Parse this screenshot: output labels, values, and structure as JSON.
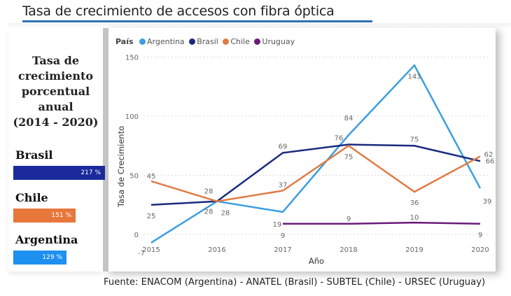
{
  "header": {
    "title": "Tasa de crecimiento de accesos con fibra óptica"
  },
  "summary_panel": {
    "heading_lines": [
      "Tasa de",
      "crecimiento",
      "porcentual",
      "anual",
      "(2014 - 2020)"
    ],
    "items": [
      {
        "country": "Brasil",
        "value_label": "217 %",
        "value": 217,
        "color": "#1a2a9c"
      },
      {
        "country": "Chile",
        "value_label": "151 %",
        "value": 151,
        "color": "#e8773c"
      },
      {
        "country": "Argentina",
        "value_label": "129 %",
        "value": 129,
        "color": "#1e90f0"
      }
    ]
  },
  "chart_data": {
    "type": "line",
    "title": "",
    "legend_title": "País",
    "legend_position": "top-left",
    "xlabel": "Año",
    "ylabel": "Tasa de Crecimiento",
    "x": [
      "2015",
      "2016",
      "2017",
      "2018",
      "2019",
      "2020"
    ],
    "ylim": [
      -10,
      150
    ],
    "yticks": [
      0,
      50,
      100,
      150
    ],
    "grid": true,
    "series": [
      {
        "name": "Argentina",
        "color": "#3a9ee0",
        "values": [
          -7,
          28,
          19,
          84,
          143,
          39
        ]
      },
      {
        "name": "Brasil",
        "color": "#1b2a7e",
        "values": [
          25,
          28,
          69,
          76,
          75,
          62
        ]
      },
      {
        "name": "Chile",
        "color": "#e07a45",
        "values": [
          45,
          28,
          37,
          75,
          36,
          66
        ]
      },
      {
        "name": "Uruguay",
        "color": "#6a1b7a",
        "values": [
          null,
          null,
          9,
          9,
          10,
          9
        ]
      }
    ]
  },
  "footer": {
    "source": "Fuente: ENACOM (Argentina) - ANATEL (Brasil) - SUBTEL (Chile) - URSEC (Uruguay)"
  }
}
